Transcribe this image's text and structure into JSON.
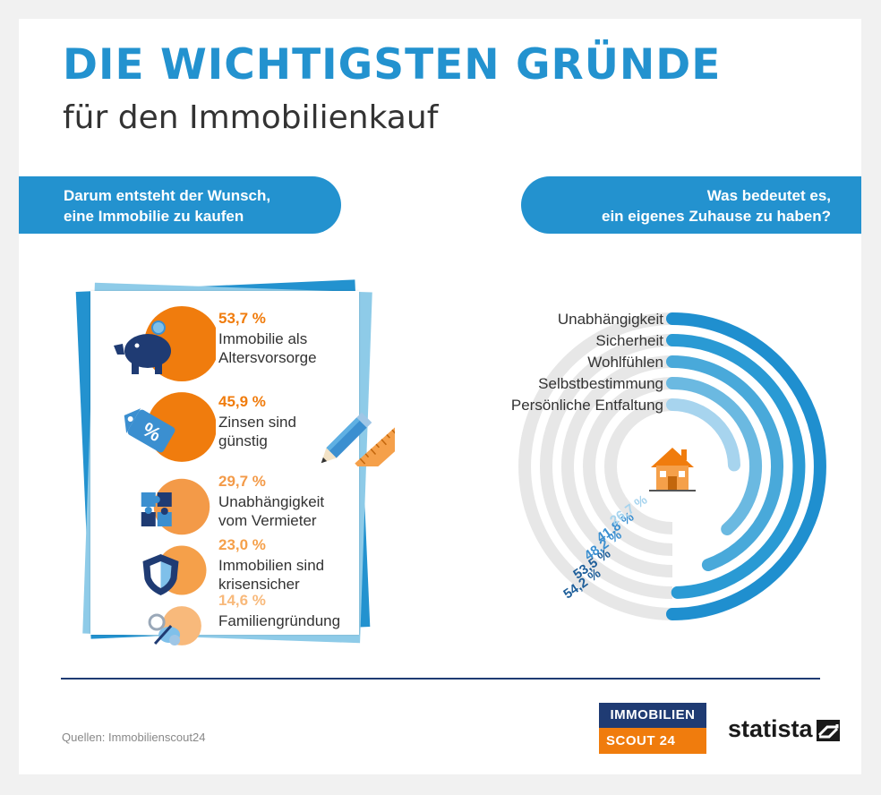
{
  "header": {
    "title": "DIE WICHTIGSTEN GRÜNDE",
    "subtitle": "für den Immobilienkauf"
  },
  "left_section": {
    "heading_line1": "Darum entsteht der Wunsch,",
    "heading_line2": "eine Immobilie zu kaufen"
  },
  "right_section": {
    "heading_line1": "Was bedeutet es,",
    "heading_line2": "ein eigenes Zuhause zu haben?"
  },
  "colors": {
    "blue": "#2392cf",
    "navy": "#1f3b73",
    "orange": "#f07c0d"
  },
  "chart_data": [
    {
      "type": "bar",
      "categories": [
        "Immobilie als Altersvorsorge",
        "Zinsen sind günstig",
        "Unabhängigkeit vom Vermieter",
        "Immobilien sind krisensicher",
        "Familiengründung"
      ],
      "values": [
        53.7,
        45.9,
        29.7,
        23.0,
        14.6
      ],
      "value_labels": [
        "53,7 %",
        "45,9 %",
        "29,7 %",
        "23,0 %",
        "14,6 %"
      ],
      "label_lines": [
        [
          "Immobilie als",
          "Altersvorsorge"
        ],
        [
          "Zinsen sind",
          "günstig"
        ],
        [
          "Unabhängigkeit",
          "vom Vermieter"
        ],
        [
          "Immobilien sind",
          "krisensicher"
        ],
        [
          "Familiengründung"
        ]
      ],
      "icons": [
        "piggy-bank-icon",
        "percent-tag-icon",
        "puzzle-icon",
        "shield-icon",
        "pacifier-icon"
      ],
      "unit": "%"
    },
    {
      "type": "radial-bar",
      "categories": [
        "Unabhängigkeit",
        "Sicherheit",
        "Wohlfühlen",
        "Selbstbestimmung",
        "Persönliche Entfaltung"
      ],
      "values": [
        54.2,
        53.5,
        48.2,
        41.8,
        26.7
      ],
      "value_labels": [
        "54,2 %",
        "53,5 %",
        "48,2 %",
        "41,8 %",
        "26,7 %"
      ],
      "colors": [
        "#1f8fcf",
        "#2a9ad4",
        "#49a9da",
        "#6bb9e1",
        "#a7d4ee"
      ],
      "center_icon": "house-icon",
      "unit": "%"
    }
  ],
  "footer": {
    "source": "Quellen: Immobilienscout24",
    "logo_top": "IMMOBILIEN",
    "logo_bottom": "SCOUT 24",
    "statista": "statista"
  }
}
